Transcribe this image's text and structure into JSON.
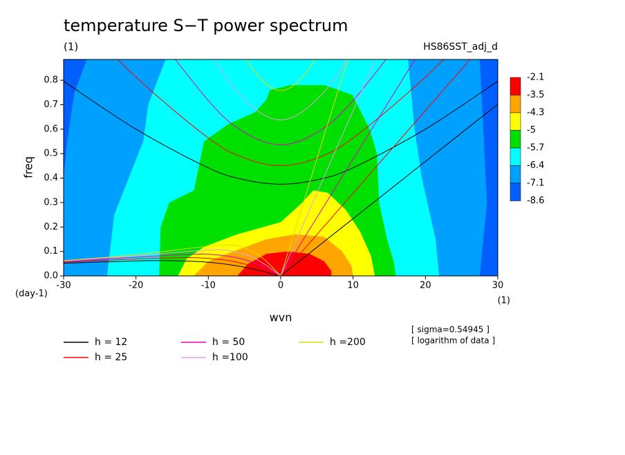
{
  "chart_data": {
    "type": "contour",
    "title": "temperature S−T power spectrum",
    "subtitle": "(1)",
    "dataset": "HS86SST_adj_d",
    "xlabel": "wvn",
    "ylabel": "freq",
    "xunit": "(1)",
    "yunit": "(day-1)",
    "xlim": [
      -30,
      30
    ],
    "ylim": [
      0,
      0.885
    ],
    "xticks": [
      -30,
      -20,
      -10,
      0,
      10,
      20,
      30
    ],
    "yticks": [
      {
        "value": 0,
        "label": "0.0"
      },
      0.1,
      0.2,
      0.3,
      0.4,
      0.5,
      0.6,
      0.7,
      0.8
    ],
    "notes": [
      "[ sigma=0.54945 ]",
      "[ logarithm of data ]"
    ],
    "colorbar": {
      "levels": [
        -2.1,
        -3.5,
        -4.3,
        -5,
        -5.7,
        -6.4,
        -7.1,
        -8.6
      ],
      "colors": [
        "#ff0000",
        "#ffa500",
        "#ffff00",
        "#00e000",
        "#00ffff",
        "#00a0ff",
        "#0060ff"
      ]
    },
    "regions": [
      {
        "x": [
          -30,
          30,
          30,
          -30
        ],
        "y": [
          0,
          0,
          0.885,
          0.885
        ]
      },
      {
        "x": [
          -26.8,
          -28.5,
          -29.5,
          -30,
          -30,
          27.5,
          28.5,
          28,
          27.5
        ],
        "y": [
          0.885,
          0.75,
          0.55,
          0.4,
          0,
          0,
          0.3,
          0.6,
          0.885
        ]
      },
      {
        "x": [
          -15.9,
          -18.3,
          -19,
          -21,
          -23,
          -24,
          21.9,
          21.4,
          19.5,
          18.5,
          17.6
        ],
        "y": [
          0.885,
          0.7,
          0.55,
          0.4,
          0.25,
          0,
          0,
          0.15,
          0.4,
          0.6,
          0.885
        ]
      },
      {
        "x": [
          -16.8,
          -16.6,
          -15.4,
          -12,
          -11.3,
          -10.6,
          -7.3,
          -3.5,
          -2,
          -1.5,
          1.3,
          6.1,
          9.9,
          12.3,
          13.3,
          13.6,
          14.7,
          15.7,
          15.9
        ],
        "y": [
          0,
          0.2,
          0.3,
          0.35,
          0.45,
          0.55,
          0.62,
          0.67,
          0.72,
          0.76,
          0.78,
          0.78,
          0.74,
          0.6,
          0.5,
          0.3,
          0.15,
          0.05,
          0
        ]
      },
      {
        "x": [
          -14.2,
          -13,
          -10.5,
          -6,
          0,
          3,
          4.5,
          6.5,
          9,
          11,
          12.5,
          13
        ],
        "y": [
          0,
          0.07,
          0.12,
          0.17,
          0.22,
          0.3,
          0.35,
          0.34,
          0.27,
          0.18,
          0.08,
          0
        ]
      },
      {
        "x": [
          -12,
          -10,
          -6.5,
          -2,
          2,
          6,
          8.5,
          9.8,
          10
        ],
        "y": [
          0,
          0.06,
          0.1,
          0.15,
          0.17,
          0.16,
          0.1,
          0.04,
          0
        ]
      },
      {
        "x": [
          -6,
          -4.5,
          -2,
          1,
          4,
          6,
          7,
          7
        ],
        "y": [
          0,
          0.05,
          0.09,
          0.1,
          0.09,
          0.06,
          0.02,
          0
        ]
      }
    ],
    "series": [
      {
        "name": "h = 12",
        "color": "#000000",
        "curves": [
          {
            "x": [
              0,
              30
            ],
            "y": [
              0,
              0.702
            ]
          },
          {
            "x": [
              -30,
              -20,
              -10,
              -5,
              0,
              5,
              10,
              20,
              30
            ],
            "y": [
              0.796,
              0.6,
              0.442,
              0.393,
              0.375,
              0.393,
              0.442,
              0.6,
              0.796
            ]
          },
          {
            "x": [
              -30,
              -20,
              -16,
              -10,
              -5,
              0
            ],
            "y": [
              0.052,
              0.061,
              0.0626,
              0.056,
              0.0356,
              0
            ]
          }
        ]
      },
      {
        "name": "h = 25",
        "color": "#ff0000",
        "curves": [
          {
            "x": [
              0,
              30
            ],
            "y": [
              0,
              1.014
            ]
          },
          {
            "x": [
              -30,
              -20,
              -10,
              -5,
              0,
              5,
              10,
              20,
              30
            ],
            "y": [
              1.11,
              0.813,
              0.564,
              0.482,
              0.451,
              0.482,
              0.564,
              0.813,
              1.11
            ]
          },
          {
            "x": [
              -30,
              -20,
              -13,
              -8,
              -4,
              0
            ],
            "y": [
              0.0558,
              0.0694,
              0.075,
              0.066,
              0.041,
              0
            ]
          }
        ]
      },
      {
        "name": "h = 50",
        "color": "#e000c0",
        "curves": [
          {
            "x": [
              0,
              30
            ],
            "y": [
              0,
              1.431
            ]
          },
          {
            "x": [
              -20,
              -10,
              -5,
              0,
              5,
              10,
              20
            ],
            "y": [
              1.094,
              0.717,
              0.587,
              0.536,
              0.587,
              0.717,
              1.094
            ]
          },
          {
            "x": [
              -30,
              -20,
              -11,
              -6,
              -3,
              0
            ],
            "y": [
              0.0587,
              0.0763,
              0.089,
              0.074,
              0.0446,
              0
            ]
          }
        ]
      },
      {
        "name": "h =100",
        "color": "#e0a0e0",
        "curves": [
          {
            "x": [
              0,
              30
            ],
            "y": [
              0,
              2.028
            ]
          },
          {
            "x": [
              -20,
              -10,
              -5,
              0,
              5,
              10,
              20
            ],
            "y": [
              1.5,
              0.93,
              0.722,
              0.638,
              0.722,
              0.93,
              1.5
            ]
          },
          {
            "x": [
              -30,
              -20,
              -9.4,
              -5,
              -2.5,
              0
            ],
            "y": [
              0.0609,
              0.082,
              0.1065,
              0.088,
              0.0527,
              0
            ]
          }
        ]
      },
      {
        "name": "h =200",
        "color": "#e8d800",
        "curves": [
          {
            "x": [
              0,
              30
            ],
            "y": [
              0,
              2.868
            ]
          },
          {
            "x": [
              -20,
              -10,
              -5,
              0,
              5,
              10,
              20
            ],
            "y": [
              2.05,
              1.22,
              0.896,
              0.758,
              0.896,
              1.22,
              2.05
            ]
          },
          {
            "x": [
              -30,
              -20,
              -8,
              -4,
              -2,
              0
            ],
            "y": [
              0.0625,
              0.0867,
              0.126,
              0.1016,
              0.06,
              0
            ]
          }
        ]
      }
    ]
  }
}
